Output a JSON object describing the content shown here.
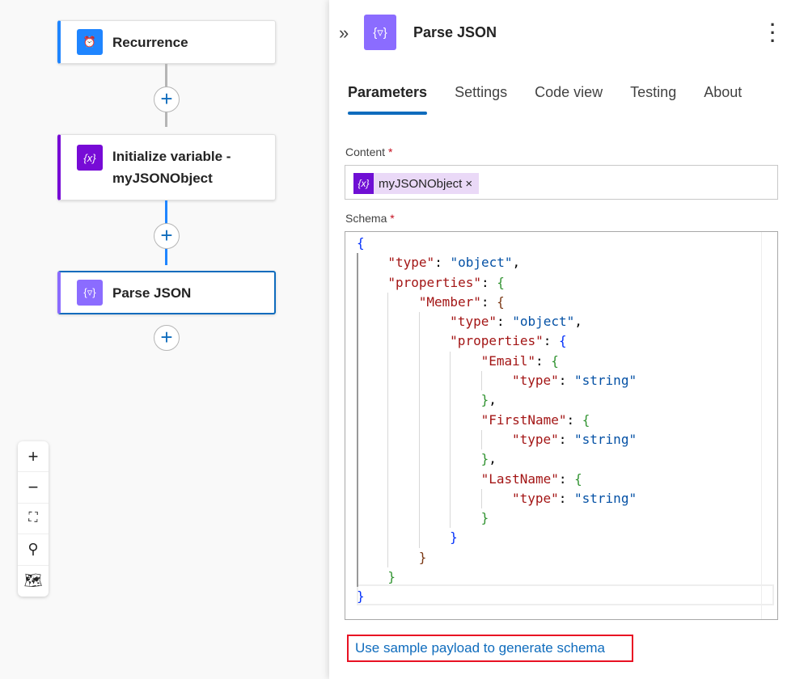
{
  "workflow": {
    "nodes": [
      {
        "label": "Recurrence",
        "icon": "alarm-clock-icon",
        "color": "#1f85ff"
      },
      {
        "label": "Initialize variable - myJSONObject",
        "icon": "variable-icon",
        "color": "#770bd6"
      },
      {
        "label": "Parse JSON",
        "icon": "parse-json-icon",
        "color": "#8b6cff"
      }
    ],
    "zoom_controls": [
      "zoom-in",
      "zoom-out",
      "fit-view",
      "search",
      "minimap"
    ]
  },
  "panel": {
    "title": "Parse JSON",
    "tabs": [
      "Parameters",
      "Settings",
      "Code view",
      "Testing",
      "About"
    ],
    "active_tab": "Parameters",
    "content_label": "Content",
    "content_token": "myJSONObject",
    "schema_label": "Schema",
    "required_mark": "*",
    "schema_lines": [
      {
        "i": 0,
        "t": [
          [
            "{",
            "b0"
          ]
        ]
      },
      {
        "i": 1,
        "t": [
          [
            "\"type\"",
            "k"
          ],
          [
            ": ",
            "p"
          ],
          [
            "\"object\"",
            "s"
          ],
          [
            ",",
            "p"
          ]
        ]
      },
      {
        "i": 1,
        "t": [
          [
            "\"properties\"",
            "k"
          ],
          [
            ": ",
            "p"
          ],
          [
            "{",
            "b1"
          ]
        ]
      },
      {
        "i": 2,
        "t": [
          [
            "\"Member\"",
            "k"
          ],
          [
            ": ",
            "p"
          ],
          [
            "{",
            "b2"
          ]
        ]
      },
      {
        "i": 3,
        "t": [
          [
            "\"type\"",
            "k"
          ],
          [
            ": ",
            "p"
          ],
          [
            "\"object\"",
            "s"
          ],
          [
            ",",
            "p"
          ]
        ]
      },
      {
        "i": 3,
        "t": [
          [
            "\"properties\"",
            "k"
          ],
          [
            ": ",
            "p"
          ],
          [
            "{",
            "b0"
          ]
        ]
      },
      {
        "i": 4,
        "t": [
          [
            "\"Email\"",
            "k"
          ],
          [
            ": ",
            "p"
          ],
          [
            "{",
            "b1"
          ]
        ]
      },
      {
        "i": 5,
        "t": [
          [
            "\"type\"",
            "k"
          ],
          [
            ": ",
            "p"
          ],
          [
            "\"string\"",
            "s"
          ]
        ]
      },
      {
        "i": 4,
        "t": [
          [
            "}",
            "b1"
          ],
          [
            ",",
            "p"
          ]
        ]
      },
      {
        "i": 4,
        "t": [
          [
            "\"FirstName\"",
            "k"
          ],
          [
            ": ",
            "p"
          ],
          [
            "{",
            "b1"
          ]
        ]
      },
      {
        "i": 5,
        "t": [
          [
            "\"type\"",
            "k"
          ],
          [
            ": ",
            "p"
          ],
          [
            "\"string\"",
            "s"
          ]
        ]
      },
      {
        "i": 4,
        "t": [
          [
            "}",
            "b1"
          ],
          [
            ",",
            "p"
          ]
        ]
      },
      {
        "i": 4,
        "t": [
          [
            "\"LastName\"",
            "k"
          ],
          [
            ": ",
            "p"
          ],
          [
            "{",
            "b1"
          ]
        ]
      },
      {
        "i": 5,
        "t": [
          [
            "\"type\"",
            "k"
          ],
          [
            ": ",
            "p"
          ],
          [
            "\"string\"",
            "s"
          ]
        ]
      },
      {
        "i": 4,
        "t": [
          [
            "}",
            "b1"
          ]
        ]
      },
      {
        "i": 3,
        "t": [
          [
            "}",
            "b0"
          ]
        ]
      },
      {
        "i": 2,
        "t": [
          [
            "}",
            "b2"
          ]
        ]
      },
      {
        "i": 1,
        "t": [
          [
            "}",
            "b1"
          ]
        ]
      },
      {
        "i": 0,
        "t": [
          [
            "}",
            "b0"
          ]
        ]
      }
    ],
    "sample_payload_link": "Use sample payload to generate schema"
  }
}
